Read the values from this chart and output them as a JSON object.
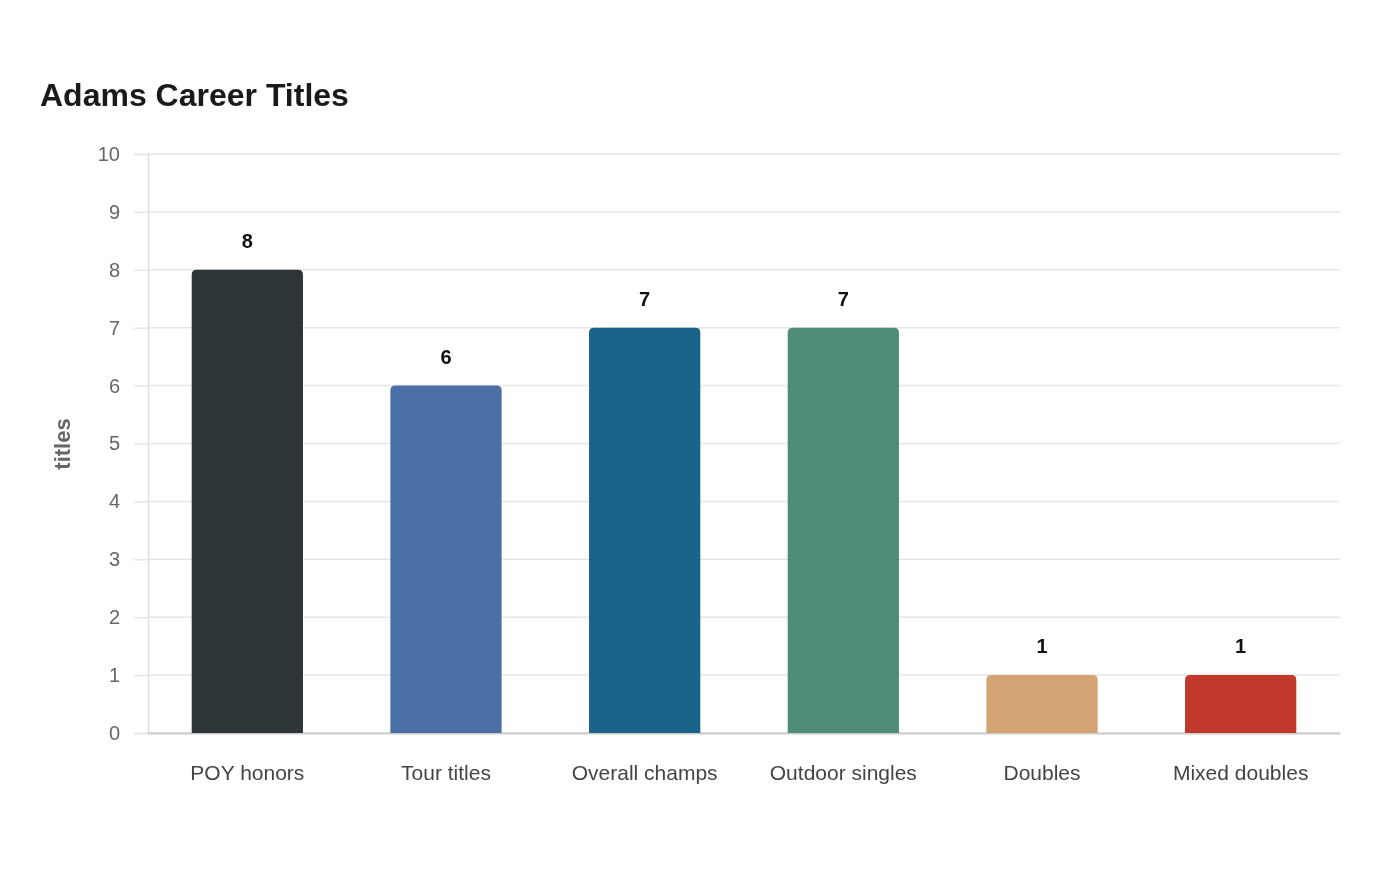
{
  "chart_data": {
    "type": "bar",
    "title": "Adams Career Titles",
    "ylabel": "titles",
    "categories": [
      "POY honors",
      "Tour titles",
      "Overall champs",
      "Outdoor singles",
      "Doubles",
      "Mixed doubles"
    ],
    "values": [
      8,
      6,
      7,
      7,
      1,
      1
    ],
    "colors": [
      "#2e3538",
      "#4a6fa5",
      "#1a6389",
      "#4f8d7b",
      "#d4a373",
      "#c0392b"
    ],
    "ylim": [
      0,
      10
    ],
    "yticks": [
      0,
      1,
      2,
      3,
      4,
      5,
      6,
      7,
      8,
      9,
      10
    ],
    "grid": "y",
    "data_labels": true
  }
}
